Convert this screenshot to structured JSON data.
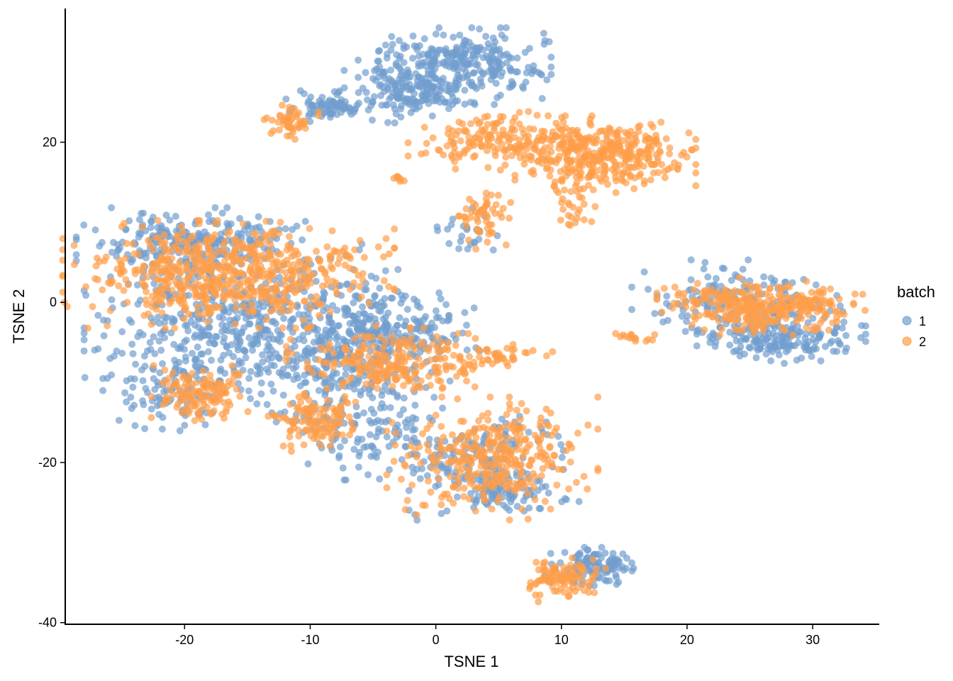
{
  "chart_data": {
    "type": "scatter",
    "title": "",
    "xlabel": "TSNE 1",
    "ylabel": "TSNE 2",
    "xlim": [
      -29.5,
      35.3
    ],
    "ylim": [
      -40.2,
      36.7
    ],
    "x_ticks": [
      -20,
      -10,
      0,
      10,
      20,
      30
    ],
    "y_ticks": [
      -40,
      -20,
      0,
      20
    ],
    "x_tick_labels": [
      "-20",
      "-10",
      "0",
      "10",
      "20",
      "30"
    ],
    "y_tick_labels": [
      "-40",
      "-20",
      "0",
      "20"
    ],
    "grid": false,
    "legend_position": "right",
    "legend": {
      "title": "batch",
      "entries": [
        {
          "label": "1",
          "color": "#729ECE"
        },
        {
          "label": "2",
          "color": "#FF9E4A"
        }
      ]
    },
    "point_opacity": 0.7,
    "series": [
      {
        "name": "1",
        "color": "#729ECE",
        "clusters": [
          {
            "cx": 1.5,
            "cy": 29.5,
            "sx": 3.2,
            "sy": 2.0,
            "n": 320
          },
          {
            "cx": -2.5,
            "cy": 26.0,
            "sx": 2.0,
            "sy": 1.5,
            "n": 130
          },
          {
            "cx": -8.8,
            "cy": 24.5,
            "sx": 1.3,
            "sy": 0.8,
            "n": 80
          },
          {
            "cx": -19.5,
            "cy": 7.5,
            "sx": 3.8,
            "sy": 1.8,
            "n": 240
          },
          {
            "cx": -16.0,
            "cy": -3.0,
            "sx": 5.0,
            "sy": 4.5,
            "n": 480
          },
          {
            "cx": -7.5,
            "cy": -5.5,
            "sx": 2.8,
            "sy": 4.0,
            "n": 260
          },
          {
            "cx": -2.5,
            "cy": -3.5,
            "sx": 2.5,
            "sy": 2.5,
            "n": 160
          },
          {
            "cx": -20.5,
            "cy": -11.5,
            "sx": 2.5,
            "sy": 2.0,
            "n": 100
          },
          {
            "cx": -5.5,
            "cy": -14.5,
            "sx": 3.0,
            "sy": 3.2,
            "n": 140
          },
          {
            "cx": 3.0,
            "cy": -20.0,
            "sx": 3.5,
            "sy": 3.0,
            "n": 190
          },
          {
            "cx": 6.0,
            "cy": -24.0,
            "sx": 2.0,
            "sy": 1.0,
            "n": 60
          },
          {
            "cx": 12.5,
            "cy": -33.0,
            "sx": 1.6,
            "sy": 1.0,
            "n": 120
          },
          {
            "cx": 27.5,
            "cy": -4.5,
            "sx": 2.8,
            "sy": 1.3,
            "n": 190
          },
          {
            "cx": 24.0,
            "cy": 0.5,
            "sx": 3.5,
            "sy": 2.0,
            "n": 150
          },
          {
            "cx": 2.5,
            "cy": 9.0,
            "sx": 1.0,
            "sy": 1.2,
            "n": 25
          }
        ]
      },
      {
        "name": "2",
        "color": "#FF9E4A",
        "clusters": [
          {
            "cx": 13.5,
            "cy": 18.5,
            "sx": 3.0,
            "sy": 2.0,
            "n": 380
          },
          {
            "cx": 5.0,
            "cy": 20.0,
            "sx": 3.0,
            "sy": 1.6,
            "n": 170
          },
          {
            "cx": -11.5,
            "cy": 22.5,
            "sx": 0.9,
            "sy": 0.9,
            "n": 50
          },
          {
            "cx": 3.8,
            "cy": 10.5,
            "sx": 0.9,
            "sy": 1.6,
            "n": 55
          },
          {
            "cx": 11.0,
            "cy": 12.0,
            "sx": 1.0,
            "sy": 1.2,
            "n": 25
          },
          {
            "cx": -16.5,
            "cy": 3.5,
            "sx": 5.5,
            "sy": 2.8,
            "n": 620
          },
          {
            "cx": -3.5,
            "cy": -7.5,
            "sx": 3.5,
            "sy": 1.8,
            "n": 240
          },
          {
            "cx": 5.5,
            "cy": -6.5,
            "sx": 1.6,
            "sy": 0.6,
            "n": 35
          },
          {
            "cx": -18.8,
            "cy": -11.5,
            "sx": 1.6,
            "sy": 1.5,
            "n": 130
          },
          {
            "cx": -9.5,
            "cy": -15.0,
            "sx": 1.6,
            "sy": 1.5,
            "n": 120
          },
          {
            "cx": 4.5,
            "cy": -19.5,
            "sx": 3.5,
            "sy": 3.2,
            "n": 330
          },
          {
            "cx": 10.0,
            "cy": -34.5,
            "sx": 1.6,
            "sy": 1.2,
            "n": 100
          },
          {
            "cx": 26.0,
            "cy": -0.5,
            "sx": 3.5,
            "sy": 1.5,
            "n": 330
          },
          {
            "cx": 15.5,
            "cy": -4.5,
            "sx": 0.8,
            "sy": 0.4,
            "n": 15
          },
          {
            "cx": -3.0,
            "cy": 15.5,
            "sx": 0.2,
            "sy": 0.2,
            "n": 8
          }
        ]
      }
    ]
  }
}
